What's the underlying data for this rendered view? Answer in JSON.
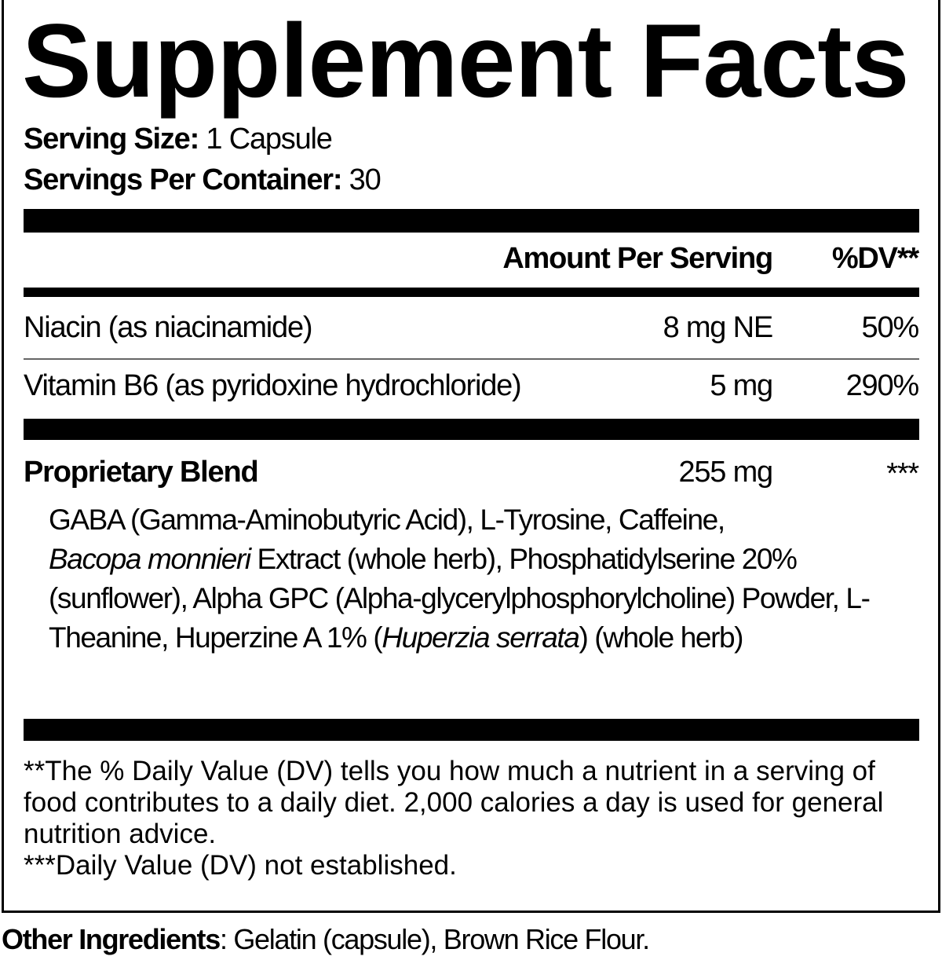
{
  "title": "Supplement Facts",
  "serving": {
    "size_label": "Serving Size:",
    "size_value": "1 Capsule",
    "per_container_label": "Servings Per Container:",
    "per_container_value": "30"
  },
  "header": {
    "amount": "Amount Per Serving",
    "dv": "%DV**"
  },
  "nutrients": [
    {
      "name": "Niacin (as niacinamide)",
      "amount": "8 mg NE",
      "dv": "50%"
    },
    {
      "name": "Vitamin B6 (as pyridoxine hydrochloride)",
      "amount": "5 mg",
      "dv": "290%"
    }
  ],
  "blend": {
    "name": "Proprietary Blend",
    "amount": "255 mg",
    "dv": "***",
    "ingredients_part1": "GABA (Gamma-Aminobutyric Acid), L-Tyrosine, Caffeine,",
    "ingredients_italic1": "Bacopa monnieri",
    "ingredients_part2": " Extract (whole herb), Phosphatidylserine 20% (sunflower), Alpha GPC (Alpha-glycerylphosphorylcholine) Powder, L-Theanine, Huperzine A 1% (",
    "ingredients_italic2": "Huperzia serrata",
    "ingredients_part3": ") (whole herb)"
  },
  "footnotes": {
    "dv_note": "**The % Daily Value (DV) tells you how much a nutrient in a serving of food contributes to a daily diet. 2,000 calories a day is used for general nutrition advice.",
    "not_established": "***Daily Value (DV) not established."
  },
  "other_ingredients": {
    "label": "Other Ingredients",
    "value": ": Gelatin (capsule), Brown Rice Flour."
  }
}
